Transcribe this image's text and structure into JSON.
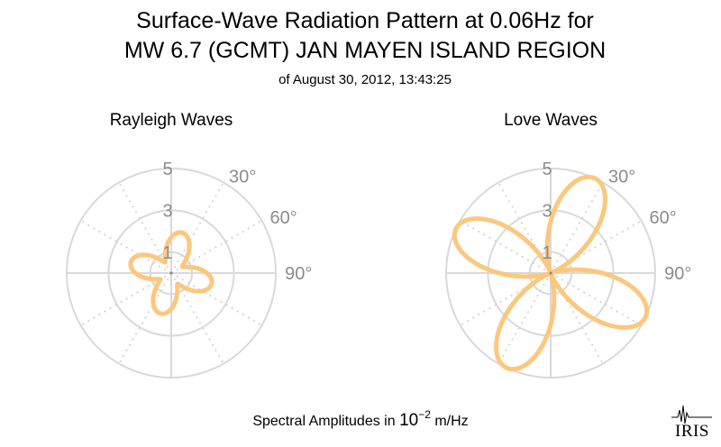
{
  "title": {
    "line1": "Surface-Wave Radiation Pattern at 0.06Hz for",
    "line2": "MW 6.7 (GCMT) JAN MAYEN ISLAND REGION",
    "line3": "of August 30, 2012, 13:43:25"
  },
  "footer": {
    "prefix": "Spectral Amplitudes in ",
    "base": "10",
    "exponent": "−2",
    "suffix": " m/Hz"
  },
  "logo": {
    "text": "IRIS"
  },
  "colors": {
    "pattern": "#fcc77e",
    "grid": "#d9d9d9",
    "tick_label": "#8c8c8c"
  },
  "chart_data": [
    {
      "type": "polar-line",
      "title": "Rayleigh Waves",
      "radial_ticks": [
        "1",
        "3",
        "5"
      ],
      "radial_tick_values": [
        1,
        3,
        5
      ],
      "angle_ticks": [
        "30°",
        "60°",
        "90°"
      ],
      "angle_tick_values": [
        30,
        60,
        90
      ],
      "rlim": [
        0,
        5
      ],
      "direction": "clockwise",
      "zero_location": "N",
      "grid": true,
      "series": [
        {
          "lobes": 4,
          "max": 2.0,
          "min": 0.6,
          "rotation_deg": 15
        }
      ]
    },
    {
      "type": "polar-line",
      "title": "Love Waves",
      "radial_ticks": [
        "1",
        "3",
        "5"
      ],
      "radial_tick_values": [
        1,
        3,
        5
      ],
      "angle_ticks": [
        "30°",
        "60°",
        "90°"
      ],
      "angle_tick_values": [
        30,
        60,
        90
      ],
      "rlim": [
        0,
        5
      ],
      "direction": "clockwise",
      "zero_location": "N",
      "grid": true,
      "series": [
        {
          "lobes": 4,
          "max": 5.0,
          "min": 0.0,
          "rotation_deg": 25
        }
      ]
    }
  ]
}
